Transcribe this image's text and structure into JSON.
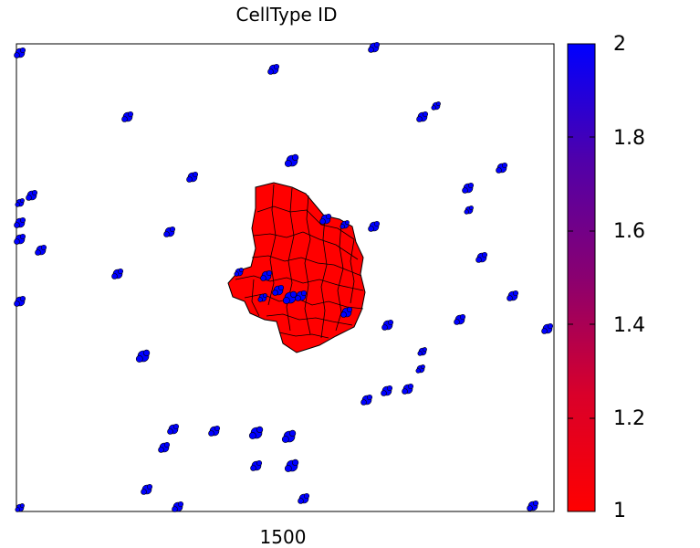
{
  "chart_data": {
    "type": "heatmap",
    "title": "CellType ID",
    "x_tick_labels": [
      "1500"
    ],
    "colorbar": {
      "min": 1,
      "max": 2,
      "ticks": [
        {
          "value": 2,
          "label": "2"
        },
        {
          "value": 1.8,
          "label": "1.8"
        },
        {
          "value": 1.6,
          "label": "1.6"
        },
        {
          "value": 1.4,
          "label": "1.4"
        },
        {
          "value": 1.2,
          "label": "1.2"
        },
        {
          "value": 1,
          "label": "1"
        }
      ],
      "low_color": "#ff0000",
      "high_color": "#0000ff"
    },
    "cell_types": [
      {
        "id": 1,
        "color": "#ff0000"
      },
      {
        "id": 2,
        "color": "#0000ff"
      }
    ],
    "grid": false
  }
}
